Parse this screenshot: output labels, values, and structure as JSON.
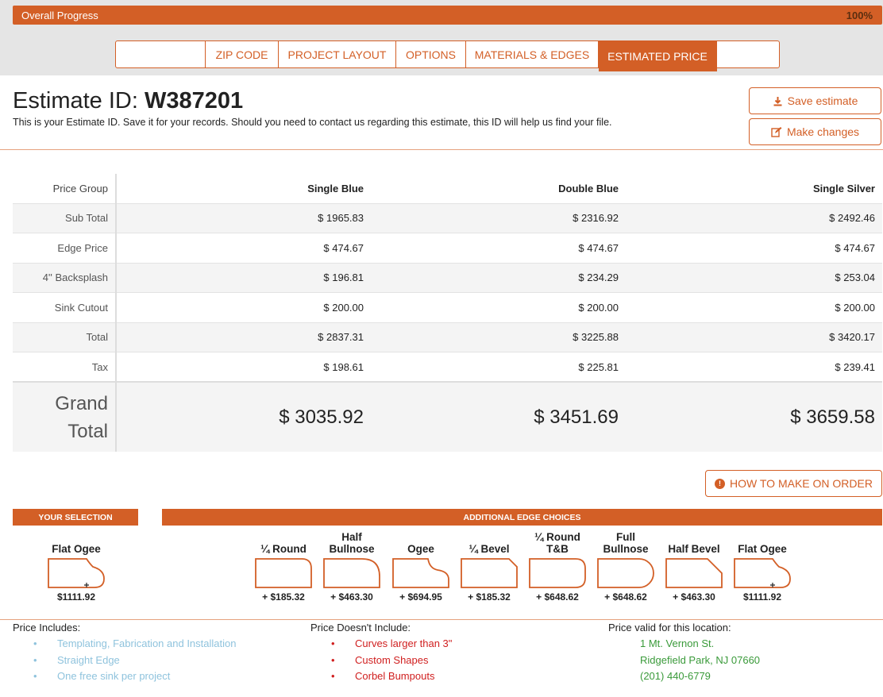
{
  "progress": {
    "label": "Overall Progress",
    "percent_text": "100%",
    "value": 1.0
  },
  "tabs": [
    {
      "label": "",
      "active": false
    },
    {
      "label": "ZIP CODE",
      "active": false
    },
    {
      "label": "PROJECT LAYOUT",
      "active": false
    },
    {
      "label": "OPTIONS",
      "active": false
    },
    {
      "label": "MATERIALS & EDGES",
      "active": false
    },
    {
      "label": "ESTIMATED PRICE",
      "active": true
    },
    {
      "label": "",
      "active": false
    }
  ],
  "estimate": {
    "title_prefix": "Estimate ID: ",
    "id": "W387201",
    "subtitle": "This is your Estimate ID. Save it for your records. Should you need to contact us regarding this estimate, this ID will help us find your file.",
    "save_label": "Save estimate",
    "changes_label": "Make changes"
  },
  "price_table": {
    "header": [
      "Price Group",
      "Single Blue",
      "Double Blue",
      "Single Silver"
    ],
    "rows": [
      {
        "label": "Sub Total",
        "values": [
          "$ 1965.83",
          "$ 2316.92",
          "$ 2492.46"
        ]
      },
      {
        "label": "Edge Price",
        "values": [
          "$ 474.67",
          "$ 474.67",
          "$ 474.67"
        ]
      },
      {
        "label": "4'' Backsplash",
        "values": [
          "$ 196.81",
          "$ 234.29",
          "$ 253.04"
        ]
      },
      {
        "label": "Sink Cutout",
        "values": [
          "$ 200.00",
          "$ 200.00",
          "$ 200.00"
        ]
      },
      {
        "label": "Total",
        "values": [
          "$ 2837.31",
          "$ 3225.88",
          "$ 3420.17"
        ]
      },
      {
        "label": "Tax",
        "values": [
          "$ 198.61",
          "$ 225.81",
          "$ 239.41"
        ]
      }
    ],
    "grand": {
      "label_line1": "Grand",
      "label_line2": "Total",
      "values": [
        "$ 3035.92",
        "$ 3451.69",
        "$ 3659.58"
      ]
    }
  },
  "how_to_label": "HOW TO MAKE ON ORDER",
  "selection": {
    "header": "YOUR SELECTION",
    "edge": {
      "name": "Flat Ogee",
      "price": "$1111.92"
    }
  },
  "additional": {
    "header": "ADDITIONAL EDGE CHOICES",
    "edges": [
      {
        "name": "¼ Round",
        "price": "+ $185.32"
      },
      {
        "name": "Half Bullnose",
        "price": "+ $463.30"
      },
      {
        "name": "Ogee",
        "price": "+ $694.95"
      },
      {
        "name": "¼ Bevel",
        "price": "+ $185.32"
      },
      {
        "name": "¼ Round T&B",
        "price": "+ $648.62"
      },
      {
        "name": "Full Bullnose",
        "price": "+ $648.62"
      },
      {
        "name": "Half Bevel",
        "price": "+ $463.30"
      },
      {
        "name": "Flat Ogee",
        "price": "$1111.92"
      }
    ]
  },
  "includes": {
    "heading": "Price Includes:",
    "items": [
      "Templating, Fabrication and Installation",
      "Straight Edge",
      "One free sink per project"
    ]
  },
  "excludes": {
    "heading": "Price Doesn't Include:",
    "items": [
      "Curves larger than 3\"",
      "Custom Shapes",
      "Corbel Bumpouts"
    ]
  },
  "location": {
    "heading": "Price valid for this location:",
    "lines": [
      "1 Mt. Vernon St.",
      "Ridgefield Park, NJ 07660",
      "(201) 440-6779"
    ]
  },
  "colors": {
    "accent": "#d35f26",
    "included": "#8fc3dd",
    "excluded": "#d01f1f",
    "location": "#3a9a3a"
  }
}
